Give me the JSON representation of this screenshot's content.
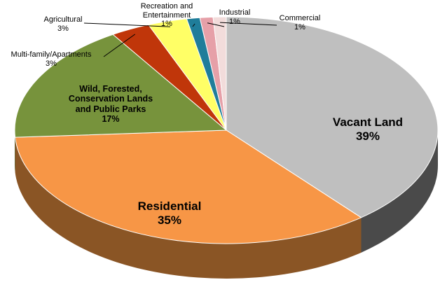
{
  "chart_data": {
    "type": "pie",
    "title": "",
    "slices": [
      {
        "label": "Vacant Land",
        "value": 39,
        "pct_label": "39%",
        "color": "#bfbfbf",
        "side_color": "#4a4a4a"
      },
      {
        "label": "Residential",
        "value": 35,
        "pct_label": "35%",
        "color": "#f79646",
        "side_color": "#8a5525"
      },
      {
        "label": "Wild, Forested, Conservation Lands and Public Parks",
        "value": 17,
        "pct_label": "17%",
        "color": "#77933c",
        "side_color": "#4b5f24"
      },
      {
        "label": "Multi-family/Apartments",
        "value": 3,
        "pct_label": "3%",
        "color": "#c0360a",
        "side_color": "#7a2205"
      },
      {
        "label": "Agricultural",
        "value": 3,
        "pct_label": "3%",
        "color": "#ffff66",
        "side_color": "#a8a83a"
      },
      {
        "label": "Recreation and Entertainment",
        "value": 1,
        "pct_label": "1%",
        "color": "#1f7d9a",
        "side_color": "#124d5e"
      },
      {
        "label": "Industrial",
        "value": 1,
        "pct_label": "1%",
        "color": "#e6a0a8",
        "side_color": "#9a6870"
      },
      {
        "label": "Commercial",
        "value": 1,
        "pct_label": "1%",
        "color": "#f2dcdb",
        "side_color": "#a89897"
      }
    ],
    "label_lines": [
      [
        "Vacant Land"
      ],
      [
        "Residential"
      ],
      [
        "Wild, Forested,",
        "Conservation Lands",
        "and Public Parks"
      ],
      [
        "Multi-family/Apartments"
      ],
      [
        "Agricultural"
      ],
      [
        "Recreation and",
        "Entertainment"
      ],
      [
        "Industrial"
      ],
      [
        "Commercial"
      ]
    ]
  }
}
